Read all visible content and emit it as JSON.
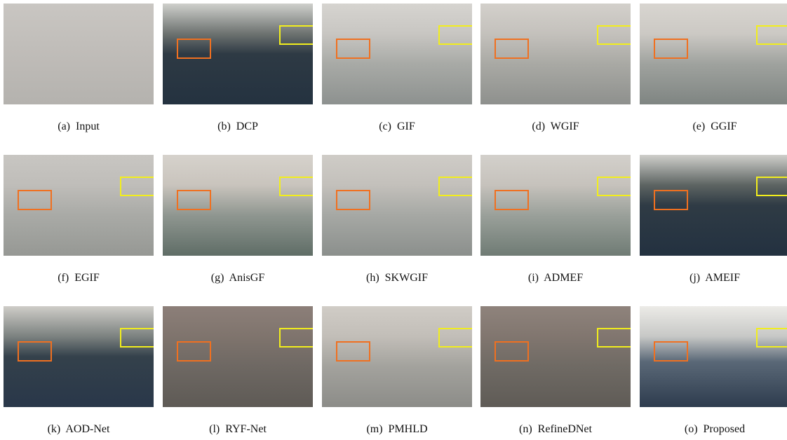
{
  "figure": {
    "captions": [
      "(a)  Input",
      "(b)  DCP",
      "(c)  GIF",
      "(d)  WGIF",
      "(e)  GGIF",
      "(f)  EGIF",
      "(g)  AnisGF",
      "(h)  SKWGIF",
      "(i)  ADMEF",
      "(j)  AMEIF",
      "(k)  AOD-Net",
      "(l)  RYF-Net",
      "(m)  PMHLD",
      "(n)  RefineDNet",
      "(o)  Proposed"
    ]
  }
}
